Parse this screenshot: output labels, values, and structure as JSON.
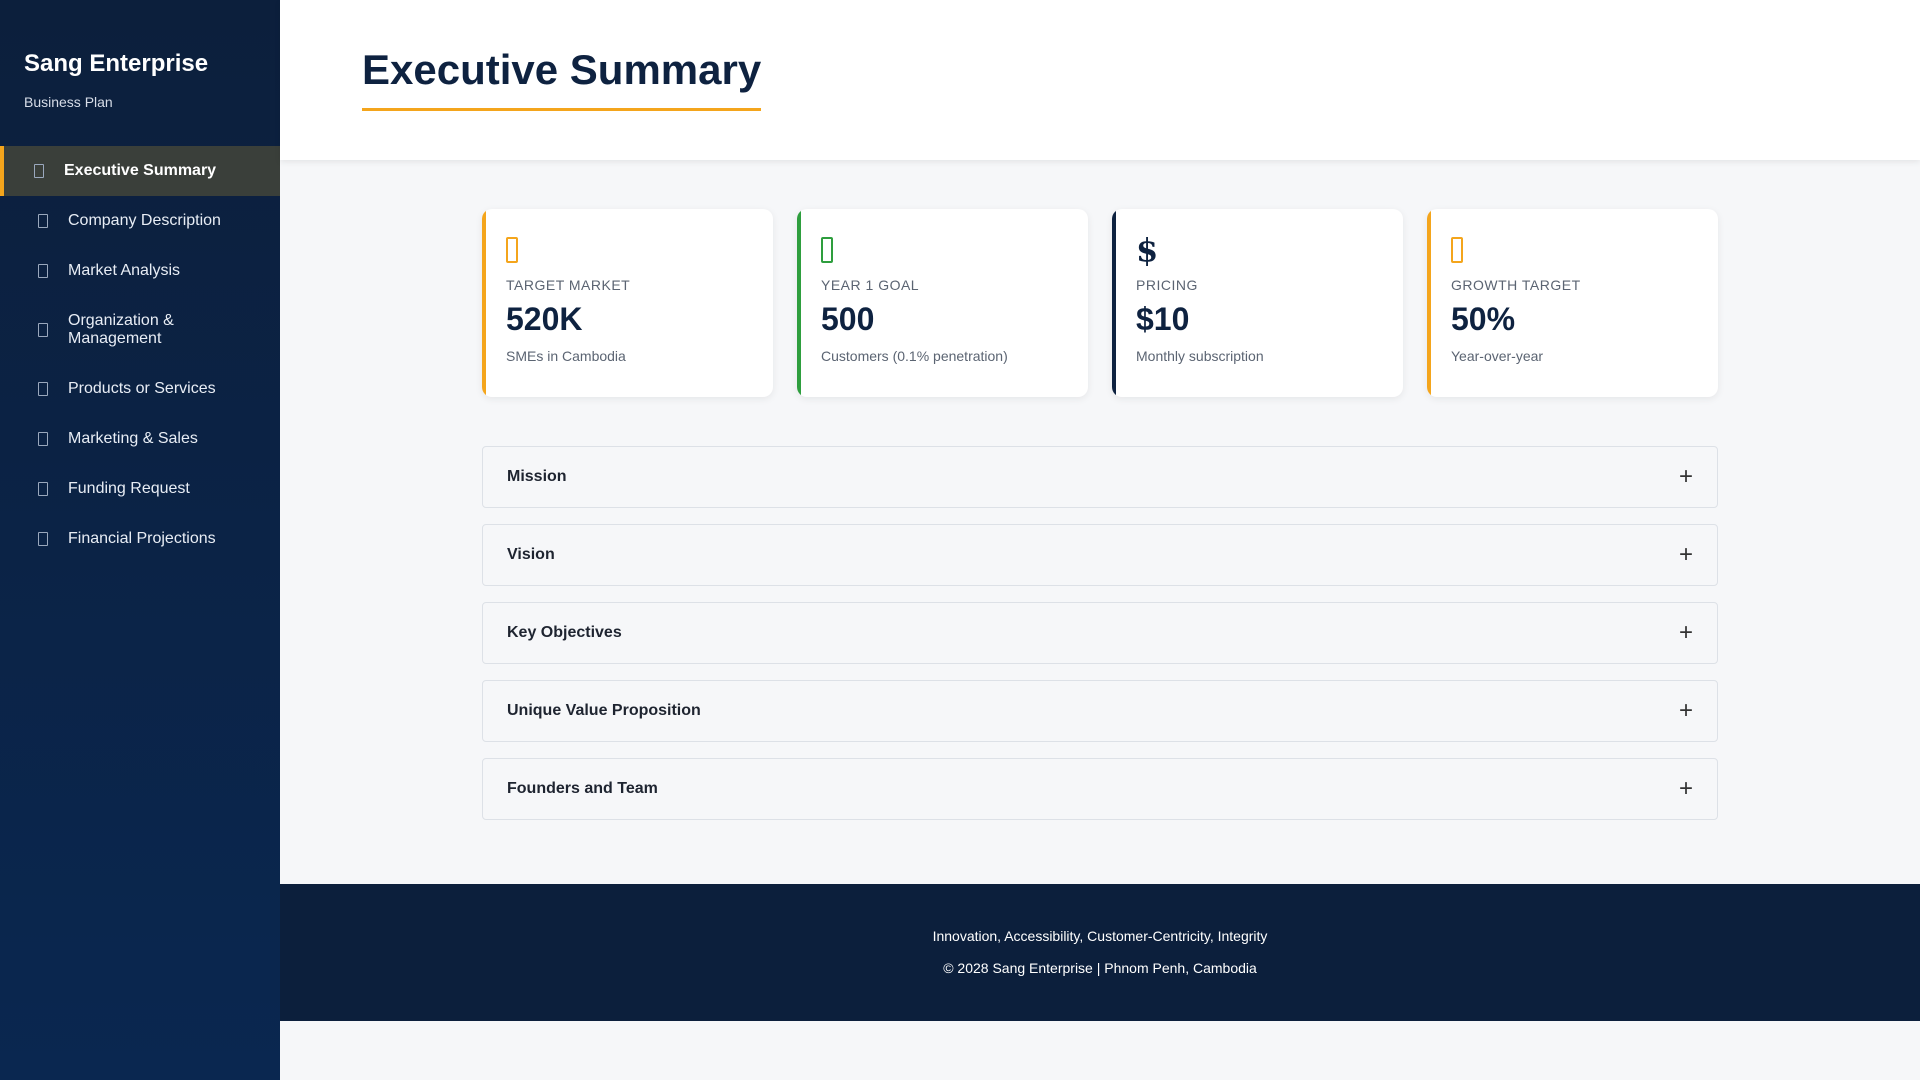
{
  "brand": {
    "title": "Sang Enterprise",
    "subtitle": "Business Plan"
  },
  "sidebar": {
    "items": [
      {
        "label": "Executive Summary",
        "active": true
      },
      {
        "label": "Company Description"
      },
      {
        "label": "Market Analysis"
      },
      {
        "label": "Organization & Management"
      },
      {
        "label": "Products or Services"
      },
      {
        "label": "Marketing & Sales"
      },
      {
        "label": "Funding Request"
      },
      {
        "label": "Financial Projections"
      }
    ]
  },
  "header": {
    "title": "Executive Summary"
  },
  "cards": [
    {
      "label": "TARGET MARKET",
      "value": "520K",
      "desc": "SMEs in Cambodia",
      "accent": "#f4a51c",
      "icon": "users-icon"
    },
    {
      "label": "YEAR 1 GOAL",
      "value": "500",
      "desc": "Customers (0.1% penetration)",
      "accent": "#2e9e3e",
      "icon": "target-icon"
    },
    {
      "label": "PRICING",
      "value": "$10",
      "desc": "Monthly subscription",
      "accent": "#0e2240",
      "icon": "dollar-icon",
      "glyph": "$"
    },
    {
      "label": "GROWTH TARGET",
      "value": "50%",
      "desc": "Year-over-year",
      "accent": "#f4a51c",
      "icon": "chart-icon"
    }
  ],
  "accordion": [
    {
      "title": "Mission",
      "toggle": "+"
    },
    {
      "title": "Vision",
      "toggle": "+"
    },
    {
      "title": "Key Objectives",
      "toggle": "+"
    },
    {
      "title": "Unique Value Proposition",
      "toggle": "+"
    },
    {
      "title": "Founders and Team",
      "toggle": "+"
    }
  ],
  "footer": {
    "values": "Innovation, Accessibility, Customer-Centricity, Integrity",
    "copyright": "© 2028 Sang Enterprise | Phnom Penh, Cambodia"
  },
  "colors": {
    "accent": "#f4a51c",
    "navy": "#0c1f3c",
    "green": "#2e9e3e"
  }
}
